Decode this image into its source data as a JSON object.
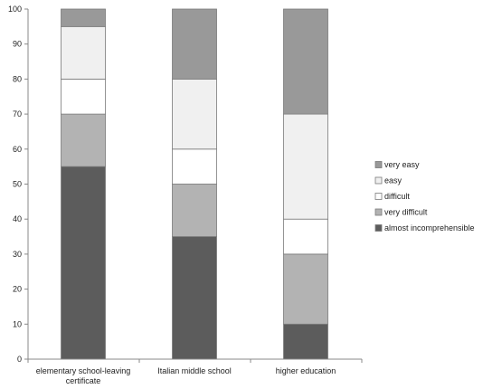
{
  "chart_data": {
    "type": "bar",
    "stacked": true,
    "categories": [
      [
        "elementary school-leaving",
        "certificate"
      ],
      [
        "Italian middle school"
      ],
      [
        "higher education"
      ]
    ],
    "ylim": [
      0,
      100
    ],
    "yticks": [
      0,
      10,
      20,
      30,
      40,
      50,
      60,
      70,
      80,
      90,
      100
    ],
    "grid": false,
    "legend_position": "right",
    "series": [
      {
        "name": "almost incomprehensible",
        "color": "#5c5c5c",
        "values": [
          55,
          35,
          10
        ]
      },
      {
        "name": "very difficult",
        "color": "#b3b3b3",
        "values": [
          15,
          15,
          20
        ]
      },
      {
        "name": "difficult",
        "color": "#ffffff",
        "values": [
          10,
          10,
          10
        ]
      },
      {
        "name": "easy",
        "color": "#f0f0f0",
        "values": [
          15,
          20,
          30
        ]
      },
      {
        "name": "very easy",
        "color": "#999999",
        "values": [
          5,
          20,
          30
        ]
      }
    ]
  }
}
